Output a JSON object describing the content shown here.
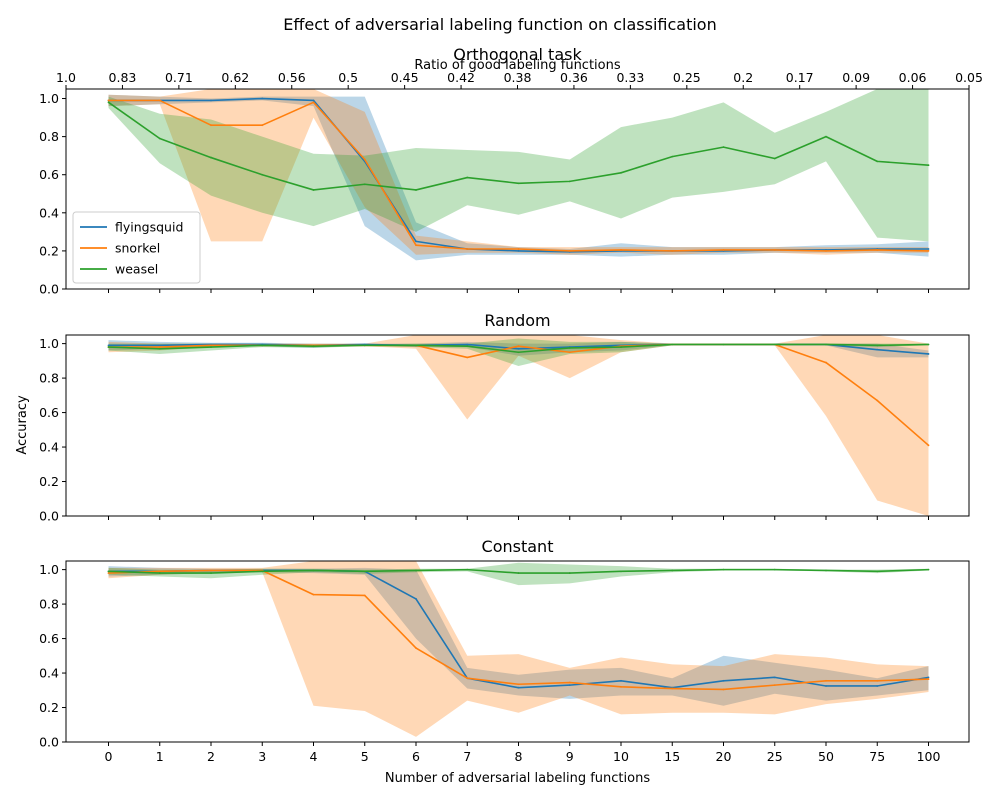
{
  "figure": {
    "title": "Effect of adversarial labeling function on classification",
    "xlabel": "Number of adversarial labeling functions",
    "ylabel": "Accuracy"
  },
  "colors": {
    "flyingsquid": "#1f77b4",
    "snorkel": "#ff7f0e",
    "weasel": "#2ca02c"
  },
  "chart_data": [
    {
      "type": "line",
      "title": "Orthogonal task",
      "xlabel": "",
      "ylabel": "",
      "secondary_xaxis": {
        "label": "Ratio of good labeling functions",
        "tick_labels": [
          "1.0",
          "0.83",
          "0.71",
          "0.62",
          "0.56",
          "0.5",
          "0.45",
          "0.42",
          "0.38",
          "0.36",
          "0.33",
          "0.25",
          "0.2",
          "0.17",
          "0.09",
          "0.06",
          "0.05"
        ]
      },
      "categories": [
        "0",
        "1",
        "2",
        "3",
        "4",
        "5",
        "6",
        "7",
        "8",
        "9",
        "10",
        "15",
        "20",
        "25",
        "50",
        "75",
        "100"
      ],
      "ylim": [
        0,
        1.05
      ],
      "yticks": [
        "0.0",
        "0.2",
        "0.4",
        "0.6",
        "0.8",
        "1.0"
      ],
      "legend": "lower-left",
      "grid": false,
      "series": [
        {
          "name": "flyingsquid",
          "values": [
            0.99,
            0.99,
            0.99,
            1.0,
            0.99,
            0.67,
            0.25,
            0.21,
            0.2,
            0.195,
            0.2,
            0.2,
            0.2,
            0.205,
            0.205,
            0.21,
            0.21
          ],
          "lower": [
            0.96,
            0.97,
            0.98,
            0.99,
            0.96,
            0.33,
            0.15,
            0.18,
            0.18,
            0.18,
            0.17,
            0.18,
            0.18,
            0.19,
            0.19,
            0.19,
            0.17
          ],
          "upper": [
            1.02,
            1.01,
            1.0,
            1.01,
            1.01,
            1.01,
            0.35,
            0.24,
            0.22,
            0.21,
            0.24,
            0.22,
            0.22,
            0.22,
            0.23,
            0.235,
            0.25
          ]
        },
        {
          "name": "snorkel",
          "values": [
            0.99,
            0.99,
            0.86,
            0.86,
            0.98,
            0.68,
            0.23,
            0.21,
            0.21,
            0.2,
            0.205,
            0.2,
            0.205,
            0.205,
            0.2,
            0.205,
            0.2
          ],
          "lower": [
            0.96,
            0.97,
            0.25,
            0.25,
            0.9,
            0.43,
            0.18,
            0.19,
            0.19,
            0.18,
            0.19,
            0.18,
            0.19,
            0.19,
            0.18,
            0.19,
            0.19
          ],
          "upper": [
            1.02,
            1.01,
            1.05,
            1.05,
            1.05,
            0.93,
            0.28,
            0.25,
            0.22,
            0.22,
            0.22,
            0.22,
            0.22,
            0.22,
            0.22,
            0.22,
            0.22
          ]
        },
        {
          "name": "weasel",
          "values": [
            0.98,
            0.79,
            0.69,
            0.6,
            0.52,
            0.55,
            0.52,
            0.585,
            0.555,
            0.565,
            0.61,
            0.695,
            0.745,
            0.685,
            0.8,
            0.67,
            0.65
          ],
          "lower": [
            0.95,
            0.66,
            0.49,
            0.4,
            0.33,
            0.42,
            0.3,
            0.44,
            0.39,
            0.46,
            0.37,
            0.48,
            0.51,
            0.55,
            0.67,
            0.27,
            0.25
          ],
          "upper": [
            1.01,
            0.92,
            0.89,
            0.8,
            0.71,
            0.7,
            0.74,
            0.73,
            0.72,
            0.68,
            0.85,
            0.9,
            0.98,
            0.82,
            0.93,
            1.05,
            1.05
          ]
        }
      ]
    },
    {
      "type": "line",
      "title": "Random",
      "xlabel": "",
      "ylabel": "Accuracy",
      "categories": [
        "0",
        "1",
        "2",
        "3",
        "4",
        "5",
        "6",
        "7",
        "8",
        "9",
        "10",
        "15",
        "20",
        "25",
        "50",
        "75",
        "100"
      ],
      "ylim": [
        0,
        1.05
      ],
      "yticks": [
        "0.0",
        "0.2",
        "0.4",
        "0.6",
        "0.8",
        "1.0"
      ],
      "grid": false,
      "series": [
        {
          "name": "flyingsquid",
          "values": [
            0.99,
            0.99,
            0.995,
            0.995,
            0.99,
            0.995,
            0.99,
            0.995,
            0.97,
            0.98,
            0.99,
            0.995,
            0.995,
            0.995,
            0.995,
            0.965,
            0.94
          ],
          "lower": [
            0.96,
            0.97,
            0.98,
            0.985,
            0.975,
            0.99,
            0.98,
            0.98,
            0.93,
            0.95,
            0.96,
            0.99,
            0.99,
            0.99,
            0.99,
            0.92,
            0.92
          ],
          "upper": [
            1.02,
            1.01,
            1.005,
            1.005,
            1.0,
            1.0,
            1.0,
            1.01,
            1.0,
            1.0,
            1.01,
            1.0,
            1.0,
            1.0,
            1.0,
            1.0,
            0.96
          ]
        },
        {
          "name": "snorkel",
          "values": [
            0.98,
            0.98,
            0.99,
            0.99,
            0.99,
            0.99,
            0.99,
            0.92,
            0.985,
            0.95,
            0.985,
            0.995,
            0.995,
            0.995,
            0.89,
            0.67,
            0.41
          ],
          "lower": [
            0.95,
            0.96,
            0.98,
            0.985,
            0.98,
            0.985,
            0.97,
            0.56,
            0.93,
            0.8,
            0.95,
            0.99,
            0.99,
            0.99,
            0.58,
            0.09,
            0.0
          ],
          "upper": [
            1.01,
            1.0,
            1.0,
            1.0,
            1.0,
            1.0,
            1.05,
            1.05,
            1.05,
            1.05,
            1.02,
            1.0,
            1.0,
            1.0,
            1.05,
            1.05,
            1.0
          ]
        },
        {
          "name": "weasel",
          "values": [
            0.98,
            0.97,
            0.98,
            0.99,
            0.985,
            0.99,
            0.99,
            0.985,
            0.95,
            0.975,
            0.98,
            0.995,
            0.995,
            0.995,
            0.995,
            0.99,
            0.995
          ],
          "lower": [
            0.96,
            0.94,
            0.96,
            0.98,
            0.975,
            0.985,
            0.98,
            0.97,
            0.87,
            0.94,
            0.95,
            0.99,
            0.99,
            0.99,
            0.99,
            0.98,
            0.99
          ],
          "upper": [
            1.0,
            1.0,
            1.0,
            1.0,
            0.995,
            0.995,
            1.0,
            1.0,
            1.03,
            1.01,
            1.01,
            1.0,
            1.0,
            1.0,
            1.0,
            1.0,
            1.0
          ]
        }
      ]
    },
    {
      "type": "line",
      "title": "Constant",
      "xlabel": "Number of adversarial labeling functions",
      "ylabel": "",
      "categories": [
        "0",
        "1",
        "2",
        "3",
        "4",
        "5",
        "6",
        "7",
        "8",
        "9",
        "10",
        "15",
        "20",
        "25",
        "50",
        "75",
        "100"
      ],
      "ylim": [
        0,
        1.05
      ],
      "yticks": [
        "0.0",
        "0.2",
        "0.4",
        "0.6",
        "0.8",
        "1.0"
      ],
      "grid": false,
      "series": [
        {
          "name": "flyingsquid",
          "values": [
            0.99,
            0.99,
            0.995,
            0.995,
            0.995,
            0.99,
            0.83,
            0.37,
            0.315,
            0.33,
            0.355,
            0.315,
            0.355,
            0.375,
            0.325,
            0.325,
            0.375
          ],
          "lower": [
            0.96,
            0.97,
            0.98,
            0.985,
            0.98,
            0.97,
            0.6,
            0.31,
            0.27,
            0.25,
            0.27,
            0.27,
            0.21,
            0.28,
            0.24,
            0.27,
            0.3
          ],
          "upper": [
            1.02,
            1.01,
            1.005,
            1.005,
            1.005,
            1.01,
            1.0,
            0.43,
            0.39,
            0.42,
            0.43,
            0.37,
            0.5,
            0.46,
            0.42,
            0.37,
            0.44
          ]
        },
        {
          "name": "snorkel",
          "values": [
            0.98,
            0.99,
            0.995,
            0.995,
            0.855,
            0.85,
            0.545,
            0.37,
            0.335,
            0.345,
            0.32,
            0.31,
            0.305,
            0.33,
            0.355,
            0.355,
            0.365
          ],
          "lower": [
            0.95,
            0.97,
            0.98,
            0.985,
            0.21,
            0.18,
            0.03,
            0.24,
            0.17,
            0.27,
            0.16,
            0.17,
            0.17,
            0.16,
            0.22,
            0.25,
            0.29
          ],
          "upper": [
            1.01,
            1.01,
            1.01,
            1.01,
            1.05,
            1.05,
            1.05,
            0.5,
            0.51,
            0.43,
            0.49,
            0.45,
            0.44,
            0.51,
            0.49,
            0.45,
            0.44
          ]
        },
        {
          "name": "weasel",
          "values": [
            0.99,
            0.98,
            0.98,
            0.99,
            0.995,
            0.99,
            0.995,
            1.0,
            0.98,
            0.98,
            0.99,
            0.995,
            1.0,
            1.0,
            0.995,
            0.99,
            1.0
          ],
          "lower": [
            0.97,
            0.96,
            0.95,
            0.97,
            0.985,
            0.975,
            0.985,
            0.99,
            0.91,
            0.92,
            0.96,
            0.985,
            0.995,
            0.995,
            0.99,
            0.98,
            0.995
          ],
          "upper": [
            1.01,
            1.0,
            1.0,
            1.005,
            1.005,
            1.0,
            1.005,
            1.005,
            1.04,
            1.03,
            1.02,
            1.005,
            1.005,
            1.005,
            1.0,
            1.0,
            1.005
          ]
        }
      ]
    }
  ]
}
